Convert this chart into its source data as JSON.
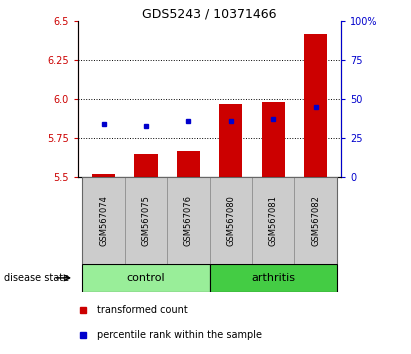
{
  "title": "GDS5243 / 10371466",
  "samples": [
    "GSM567074",
    "GSM567075",
    "GSM567076",
    "GSM567080",
    "GSM567081",
    "GSM567082"
  ],
  "groups": [
    "control",
    "control",
    "control",
    "arthritis",
    "arthritis",
    "arthritis"
  ],
  "red_values": [
    5.52,
    5.65,
    5.67,
    5.97,
    5.98,
    6.42
  ],
  "blue_values": [
    5.84,
    5.83,
    5.86,
    5.86,
    5.87,
    5.95
  ],
  "ymin": 5.5,
  "ymax": 6.5,
  "yticks_left": [
    5.5,
    5.75,
    6.0,
    6.25,
    6.5
  ],
  "yticks_right": [
    0,
    25,
    50,
    75,
    100
  ],
  "dotted_lines": [
    5.75,
    6.0,
    6.25
  ],
  "bar_width": 0.55,
  "red_color": "#cc0000",
  "blue_color": "#0000cc",
  "control_color": "#99ee99",
  "arthritis_color": "#44cc44",
  "group_bg_color": "#cccccc",
  "legend_red_label": "transformed count",
  "legend_blue_label": "percentile rank within the sample",
  "disease_state_label": "disease state",
  "group_label_control": "control",
  "group_label_arthritis": "arthritis"
}
